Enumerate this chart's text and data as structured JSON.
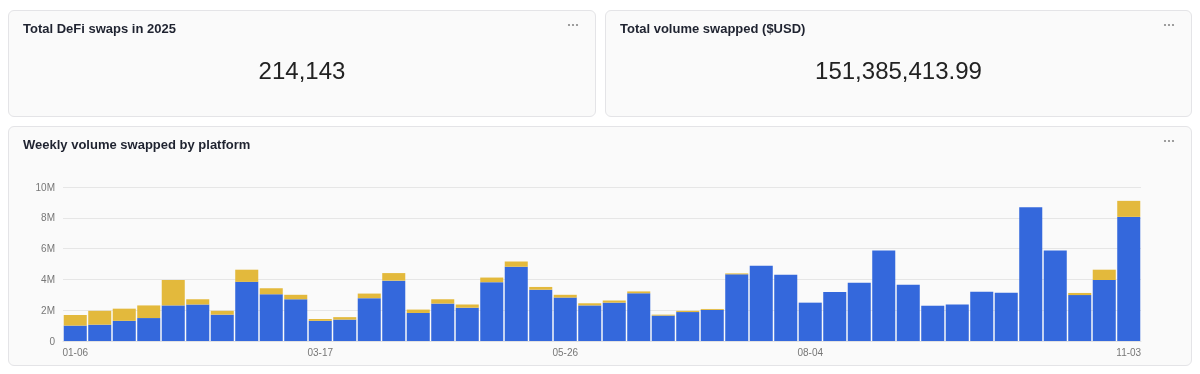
{
  "chart_data": [
    {
      "type": "other",
      "title": "Total DeFi swaps in 2025",
      "annotations": [
        "214,143"
      ]
    },
    {
      "type": "other",
      "title": "Total volume swapped ($USD)",
      "annotations": [
        "151,385,413.99"
      ]
    },
    {
      "type": "bar",
      "title": "Weekly volume swapped by platform",
      "stacked": true,
      "grid": "y",
      "categories": [
        "01-06",
        null,
        null,
        null,
        null,
        null,
        null,
        null,
        null,
        null,
        "03-17",
        null,
        null,
        null,
        null,
        null,
        null,
        null,
        null,
        null,
        "05-26",
        null,
        null,
        null,
        null,
        null,
        null,
        null,
        null,
        null,
        "08-04",
        null,
        null,
        null,
        null,
        null,
        null,
        null,
        null,
        null,
        null,
        null,
        null,
        "11-03"
      ],
      "ylim": [
        0,
        10000000
      ],
      "yticks": [
        0,
        {
          "value": 2000000,
          "label": "2M"
        },
        {
          "value": 4000000,
          "label": "4M"
        },
        {
          "value": 6000000,
          "label": "6M"
        },
        {
          "value": 8000000,
          "label": "8M"
        },
        {
          "value": 10000000,
          "label": "10M"
        }
      ],
      "series": [
        {
          "color": "#3468dc",
          "values": [
            1000000,
            1060000,
            1310000,
            1490000,
            2310000,
            2370000,
            1710000,
            3840000,
            3040000,
            2710000,
            1310000,
            1390000,
            2780000,
            3920000,
            1820000,
            2430000,
            2160000,
            3820000,
            4820000,
            3330000,
            2820000,
            2310000,
            2490000,
            3100000,
            1650000,
            1880000,
            2020000,
            4330000,
            4880000,
            4310000,
            2490000,
            3180000,
            3780000,
            5880000,
            3650000,
            2290000,
            2370000,
            3200000,
            3140000,
            8690000,
            5880000,
            2980000,
            3960000,
            8060000
          ]
        },
        {
          "color": "#e3b93c",
          "values": [
            690000,
            900000,
            790000,
            820000,
            1650000,
            340000,
            250000,
            790000,
            390000,
            290000,
            120000,
            160000,
            300000,
            490000,
            220000,
            280000,
            210000,
            300000,
            340000,
            180000,
            180000,
            140000,
            140000,
            120000,
            60000,
            80000,
            60000,
            60000,
            null,
            null,
            null,
            null,
            null,
            null,
            null,
            null,
            null,
            null,
            null,
            null,
            null,
            140000,
            670000,
            1040000
          ]
        }
      ]
    }
  ]
}
